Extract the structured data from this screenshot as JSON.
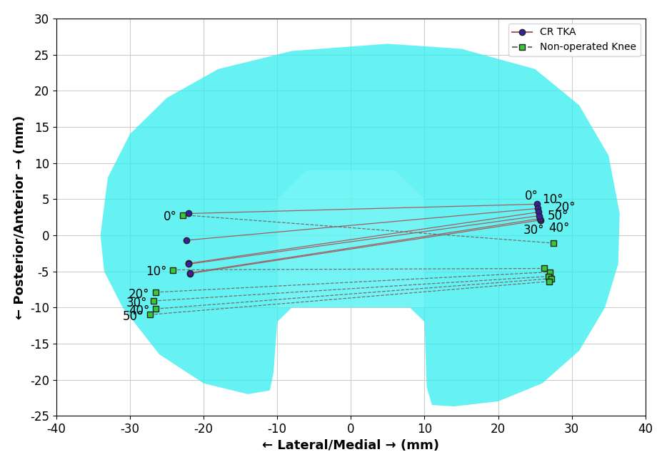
{
  "chart_data": {
    "type": "scatter",
    "x_label": "← Lateral/Medial → (mm)",
    "y_label": "← Posterior/Anterior → (mm)",
    "xlim": [
      -40,
      40
    ],
    "xticks": [
      -40,
      -30,
      -20,
      -10,
      0,
      10,
      20,
      30,
      40
    ],
    "ylim": [
      -25,
      30
    ],
    "yticks": [
      -25,
      -20,
      -15,
      -10,
      -5,
      0,
      5,
      10,
      15,
      20,
      25,
      30
    ],
    "grid": true,
    "legend": "upper right",
    "categories": [
      "0°",
      "10°",
      "20°",
      "30°",
      "40°",
      "50°"
    ],
    "series": [
      {
        "name": "CR TKA",
        "color": "#3b1fa0",
        "line_color": "#a06060",
        "marker": "circle",
        "line_style": "solid",
        "lateral_x": [
          -22.0,
          -22.3,
          -22.0,
          -21.8,
          -21.8,
          -22.0
        ],
        "lateral_y": [
          3.0,
          -0.7,
          -3.9,
          -5.3,
          -5.2,
          -4.0
        ],
        "medial_x": [
          25.3,
          25.4,
          25.5,
          25.8,
          25.7,
          25.6
        ],
        "medial_y": [
          4.3,
          3.7,
          3.2,
          2.1,
          2.3,
          2.7
        ],
        "labeled_side": "medial"
      },
      {
        "name": "Non-operated Knee",
        "color": "#33cc33",
        "line_color": "#707070",
        "marker": "square",
        "line_style": "dashed",
        "lateral_x": [
          -22.8,
          -24.2,
          -26.5,
          -26.8,
          -26.5,
          -27.3
        ],
        "lateral_y": [
          2.8,
          -4.8,
          -7.9,
          -9.1,
          -10.2,
          -11.0
        ],
        "medial_x": [
          27.5,
          26.2,
          27.0,
          26.8,
          27.2,
          26.9
        ],
        "medial_y": [
          -1.1,
          -4.6,
          -5.1,
          -5.7,
          -6.0,
          -6.4
        ],
        "labeled_side": "lateral"
      }
    ]
  }
}
